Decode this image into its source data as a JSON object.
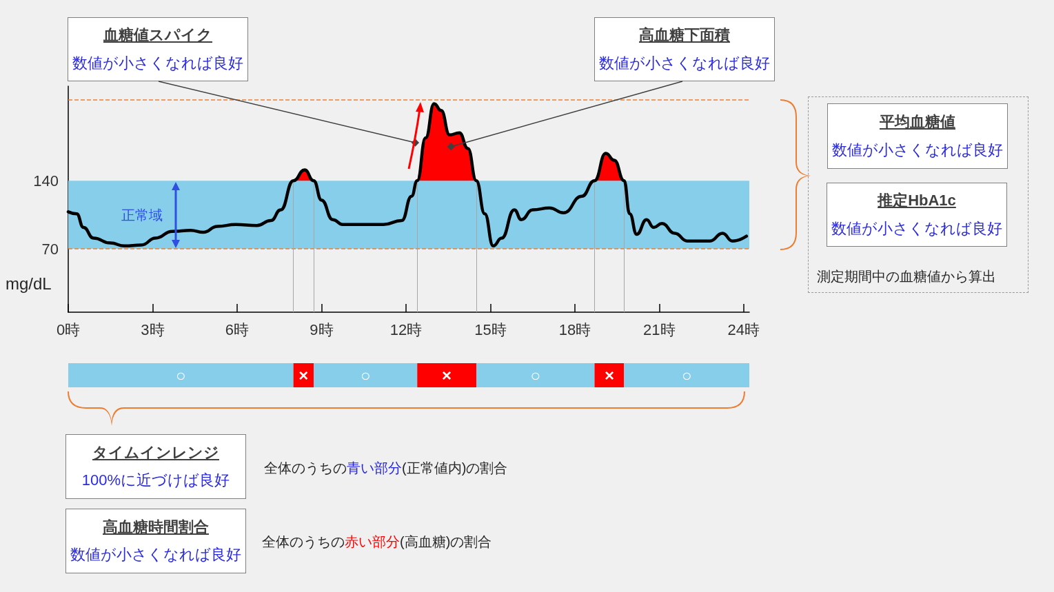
{
  "chart_data": [
    {
      "type": "line",
      "ylabel": "mg/dL",
      "xlim": [
        0,
        24.2
      ],
      "ylim": [
        5,
        237
      ],
      "xticks": [
        {
          "value": 0,
          "label": "0時"
        },
        {
          "value": 3,
          "label": "3時"
        },
        {
          "value": 6,
          "label": "6時"
        },
        {
          "value": 9,
          "label": "9時"
        },
        {
          "value": 12,
          "label": "12時"
        },
        {
          "value": 15,
          "label": "15時"
        },
        {
          "value": 18,
          "label": "18時"
        },
        {
          "value": 21,
          "label": "21時"
        },
        {
          "value": 24,
          "label": "24時"
        }
      ],
      "yticks": [
        70,
        140
      ],
      "series": [
        {
          "color": "#000000",
          "x": [
            0,
            0.3,
            0.54,
            0.9,
            1.5,
            2.0,
            2.6,
            3.1,
            3.7,
            4.35,
            4.8,
            5.3,
            5.95,
            6.7,
            7.2,
            7.55,
            8.0,
            8.4,
            8.72,
            9.0,
            9.4,
            9.75,
            10.5,
            11.2,
            11.85,
            12.2,
            12.4,
            12.7,
            13.0,
            13.25,
            13.55,
            13.9,
            14.2,
            14.5,
            14.8,
            15.1,
            15.4,
            15.85,
            16.1,
            16.5,
            17.1,
            17.6,
            18.25,
            18.7,
            19.1,
            19.4,
            19.75,
            19.95,
            20.2,
            20.55,
            20.8,
            21.1,
            21.55,
            22.0,
            22.8,
            23.25,
            23.6,
            24.1
          ],
          "values": [
            108,
            106,
            92,
            81,
            76,
            73,
            74,
            81,
            88,
            89,
            87,
            93,
            95,
            94,
            99,
            110,
            140,
            151,
            140,
            120,
            100,
            95,
            95,
            95,
            99,
            124,
            140,
            184,
            219,
            212,
            187,
            189,
            173,
            140,
            106,
            73,
            81,
            110,
            100,
            110,
            112,
            107,
            124,
            140,
            168,
            161,
            140,
            106,
            85,
            100,
            92,
            96,
            86,
            78,
            78,
            86,
            78,
            83
          ]
        },
        {
          "type": "area",
          "color": "#ff0000",
          "x": [
            8.0,
            8.4,
            8.72
          ],
          "values": [
            140,
            151,
            140
          ]
        },
        {
          "type": "area",
          "color": "#ff0000",
          "x": [
            12.4,
            12.7,
            13.0,
            13.25,
            13.55,
            13.9,
            14.2,
            14.5
          ],
          "values": [
            140,
            184,
            219,
            212,
            187,
            189,
            173,
            140
          ]
        },
        {
          "type": "area",
          "color": "#ff0000",
          "x": [
            18.7,
            19.1,
            19.4,
            19.75
          ],
          "values": [
            140,
            168,
            161,
            140
          ]
        }
      ],
      "bands": [
        {
          "axis": "y",
          "from": 70,
          "to": 140,
          "label": "正常域",
          "color": "#87ceeb"
        }
      ],
      "ref_lines": [
        {
          "axis": "y",
          "value": 70,
          "color": "#ed7d31",
          "line_style": "dashed"
        },
        {
          "axis": "y",
          "value": 223,
          "color": "#ed7d31",
          "line_style": "dashed"
        },
        {
          "axis": "x",
          "value": 8.0,
          "color": "#a6a6a6",
          "line_style": "solid"
        },
        {
          "axis": "x",
          "value": 8.72,
          "color": "#a6a6a6",
          "line_style": "solid"
        },
        {
          "axis": "x",
          "value": 12.4,
          "color": "#a6a6a6",
          "line_style": "solid"
        },
        {
          "axis": "x",
          "value": 14.5,
          "color": "#a6a6a6",
          "line_style": "solid"
        },
        {
          "axis": "x",
          "value": 18.7,
          "color": "#a6a6a6",
          "line_style": "solid"
        },
        {
          "axis": "x",
          "value": 19.75,
          "color": "#a6a6a6",
          "line_style": "solid"
        }
      ],
      "annotations": [
        "血糖値スパイク",
        {
          "text": "数値が小さくなれば良好",
          "x": 12.33,
          "y": 179
        },
        "高血糖下面積",
        {
          "text": "数値が小さくなれば良好",
          "x": 13.6,
          "y": 175
        },
        "平均血糖値",
        "数値が小さくなれば良好",
        "推定HbA1c",
        "数値が小さくなれば良好",
        "測定期間中の血糖値から算出",
        "タイムインレンジ",
        "100%に近づけば良好",
        "全体のうちの",
        "青い部分",
        "(正常値内)の割合",
        "高血糖時間割合",
        "数値が小さくなれば良好",
        "全体のうちの",
        "赤い部分",
        "(高血糖)の割合"
      ]
    },
    {
      "type": "bar",
      "orientation": "horizontal",
      "stacked": true,
      "categories": [
        null
      ],
      "xlim": [
        0,
        24.2
      ],
      "tick_labels": false,
      "series": [
        {
          "color": "#87ceeb",
          "values": [
            8.0
          ],
          "value_labels": [
            "○"
          ]
        },
        {
          "color": "#ff0000",
          "values": [
            0.72
          ],
          "value_labels": [
            "×"
          ]
        },
        {
          "color": "#87ceeb",
          "values": [
            3.68
          ],
          "value_labels": [
            "○"
          ]
        },
        {
          "color": "#ff0000",
          "values": [
            2.1
          ],
          "value_labels": [
            "×"
          ]
        },
        {
          "color": "#87ceeb",
          "values": [
            4.2
          ],
          "value_labels": [
            "○"
          ]
        },
        {
          "color": "#ff0000",
          "values": [
            1.05
          ],
          "value_labels": [
            "×"
          ]
        },
        {
          "color": "#87ceeb",
          "values": [
            4.45
          ],
          "value_labels": [
            "○"
          ]
        }
      ]
    }
  ]
}
